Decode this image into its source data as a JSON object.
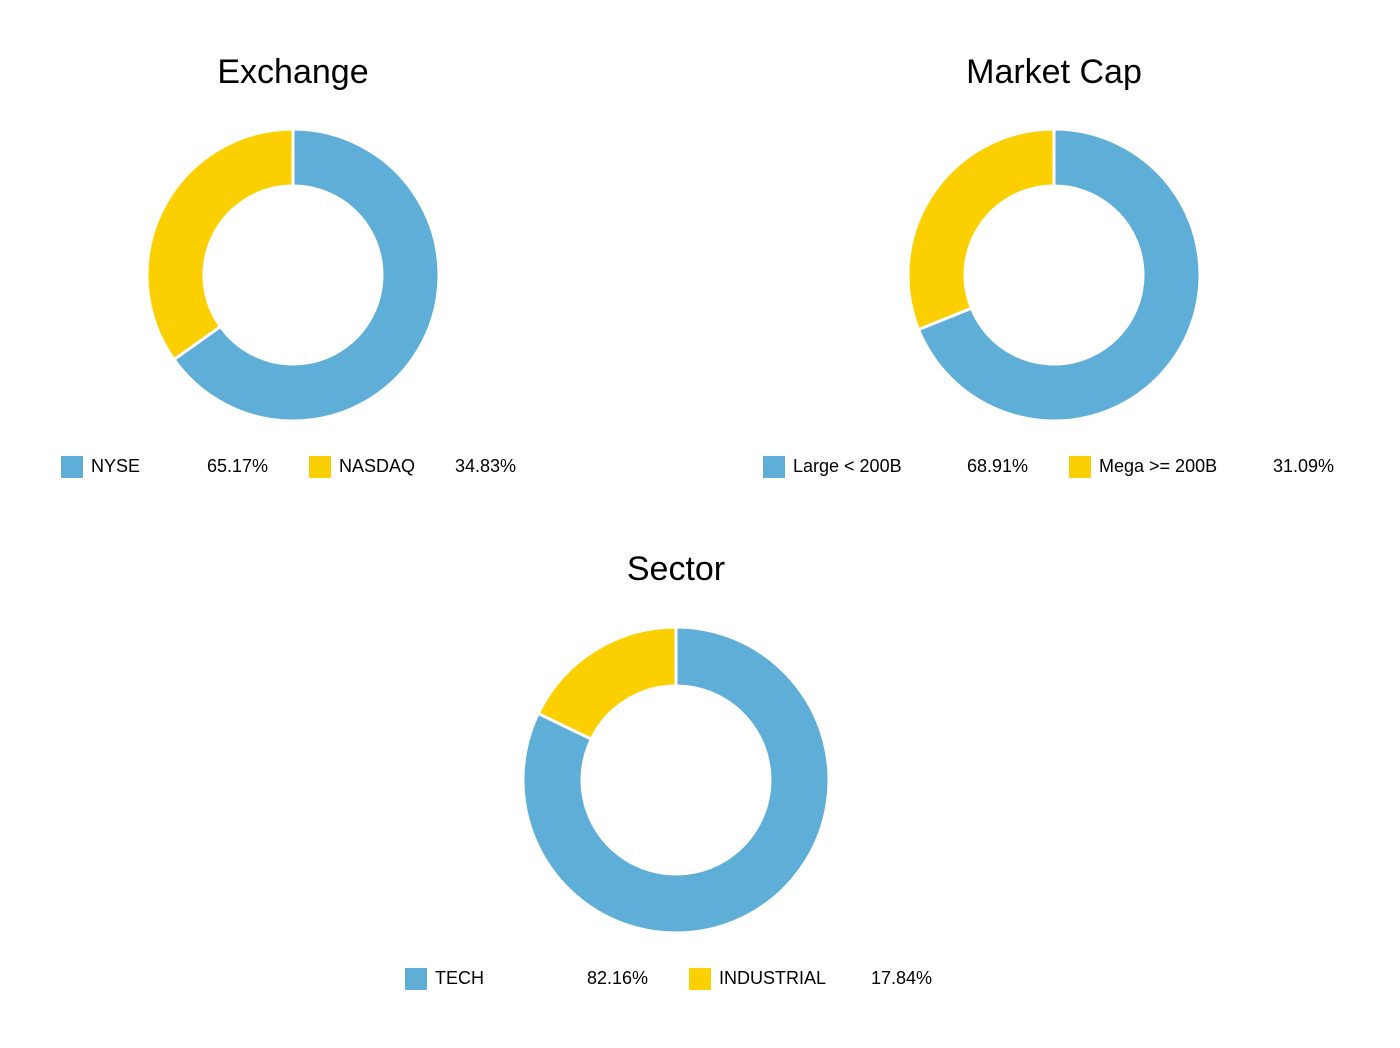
{
  "chart_data": [
    {
      "type": "pie",
      "title": "Exchange",
      "categories": [
        "NYSE",
        "NASDAQ"
      ],
      "values": [
        65.17,
        34.83
      ],
      "value_labels": [
        "65.17%",
        "34.83%"
      ],
      "colors": [
        "#5eaed8",
        "#fcd000"
      ],
      "legend": "bottom"
    },
    {
      "type": "pie",
      "title": "Market Cap",
      "categories": [
        "Large < 200B",
        "Mega >= 200B"
      ],
      "values": [
        68.91,
        31.09
      ],
      "value_labels": [
        "68.91%",
        "31.09%"
      ],
      "colors": [
        "#5eaed8",
        "#fcd000"
      ],
      "legend": "bottom"
    },
    {
      "type": "pie",
      "title": "Sector",
      "categories": [
        "TECH",
        "INDUSTRIAL"
      ],
      "values": [
        82.16,
        17.84
      ],
      "value_labels": [
        "82.16%",
        "17.84%"
      ],
      "colors": [
        "#5eaed8",
        "#fcd000"
      ],
      "legend": "bottom"
    }
  ]
}
